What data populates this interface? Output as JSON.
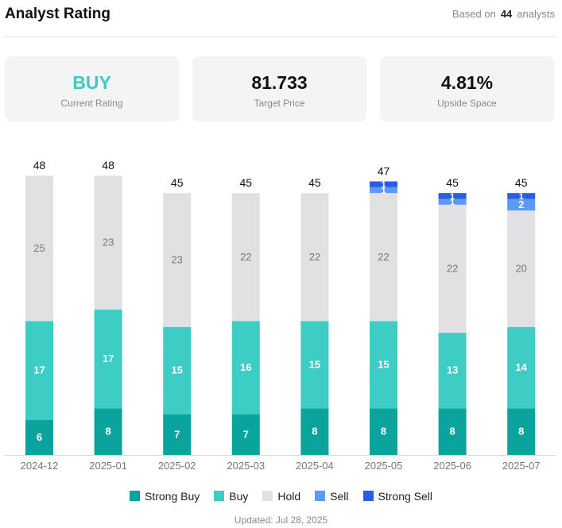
{
  "header": {
    "title": "Analyst Rating",
    "based_prefix": "Based on",
    "analyst_count": "44",
    "based_suffix": "analysts"
  },
  "cards": [
    {
      "value": "BUY",
      "label": "Current Rating"
    },
    {
      "value": "81.733",
      "label": "Target Price"
    },
    {
      "value": "4.81%",
      "label": "Upside Space"
    }
  ],
  "colors": {
    "strong_buy": "#0aa39e",
    "buy": "#3ecdc4",
    "hold": "#e1e1e3",
    "sell": "#5b9bf3",
    "strong_sell": "#2b5ce6"
  },
  "chart_data": {
    "type": "bar",
    "stacked": true,
    "categories": [
      "2024-12",
      "2025-01",
      "2025-02",
      "2025-03",
      "2025-04",
      "2025-05",
      "2025-06",
      "2025-07"
    ],
    "totals": [
      48,
      48,
      45,
      45,
      45,
      47,
      45,
      45
    ],
    "series": [
      {
        "name": "Strong Buy",
        "key": "strong_buy",
        "values": [
          6,
          8,
          7,
          7,
          8,
          8,
          8,
          8
        ]
      },
      {
        "name": "Buy",
        "key": "buy",
        "values": [
          17,
          17,
          15,
          16,
          15,
          15,
          13,
          14
        ]
      },
      {
        "name": "Hold",
        "key": "hold",
        "values": [
          25,
          23,
          23,
          22,
          22,
          22,
          22,
          20
        ]
      },
      {
        "name": "Sell",
        "key": "sell",
        "values": [
          0,
          0,
          0,
          0,
          0,
          1,
          1,
          2
        ]
      },
      {
        "name": "Strong Sell",
        "key": "strong_sell",
        "values": [
          0,
          0,
          0,
          0,
          0,
          1,
          1,
          1
        ]
      }
    ],
    "ylim": [
      0,
      48
    ],
    "legend_position": "bottom"
  },
  "footer": {
    "updated": "Updated: Jul 28, 2025"
  }
}
